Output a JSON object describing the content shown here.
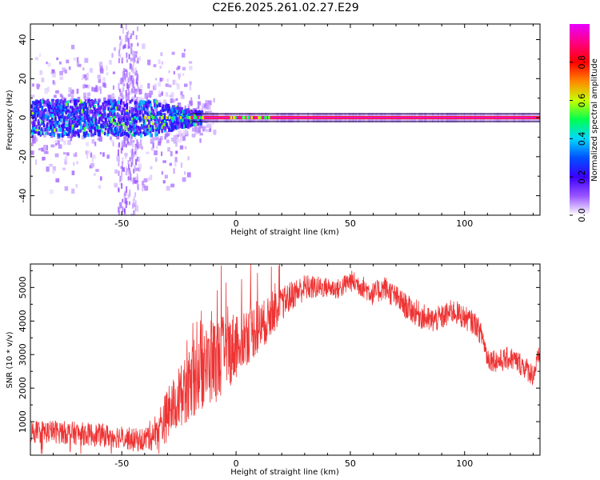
{
  "title": "C2E6.2025.261.02.27.E29",
  "chart_data": [
    {
      "type": "heatmap",
      "xlabel": "Height of straight line (km)",
      "ylabel": "Frequency (Hz)",
      "xlim": [
        -90,
        133
      ],
      "ylim": [
        -50,
        48
      ],
      "xticks": [
        -50,
        0,
        50,
        100
      ],
      "yticks": [
        -40,
        -20,
        0,
        20,
        40
      ],
      "colorbar": {
        "label": "Normalized spectral amplitude",
        "range": [
          0,
          1
        ],
        "ticks": [
          "0.0",
          "0.2",
          "0.4",
          "0.6",
          "0.8"
        ],
        "tick_values": [
          0,
          0.2,
          0.4,
          0.6,
          0.8
        ],
        "colors": [
          "#ffffff",
          "#9a55ff",
          "#3b00ff",
          "#0050ff",
          "#00d8ff",
          "#00ff50",
          "#c8ff00",
          "#ff8800",
          "#ff0000",
          "#ff0080",
          "#e800ff"
        ]
      },
      "features": {
        "carrier_line_frequency_hz": 0,
        "carrier_line_band_hz": [
          -2,
          2
        ],
        "broadband_noise_region_km": [
          -90,
          -15
        ],
        "vertical_streak_km": [
          -52,
          -43
        ]
      }
    },
    {
      "type": "line",
      "xlabel": "Height of straight line (km)",
      "ylabel": "SNR (10 * v/v)",
      "xlim": [
        -90,
        133
      ],
      "ylim": [
        0,
        5700
      ],
      "xticks": [
        -50,
        0,
        50,
        100
      ],
      "yticks": [
        1000,
        2000,
        3000,
        4000,
        5000
      ],
      "series_color": "#ee3333",
      "envelope": {
        "x": [
          -90,
          -80,
          -70,
          -60,
          -50,
          -45,
          -40,
          -35,
          -30,
          -25,
          -20,
          -15,
          -10,
          -5,
          0,
          5,
          10,
          15,
          20,
          25,
          30,
          35,
          40,
          45,
          50,
          55,
          60,
          65,
          70,
          75,
          80,
          85,
          90,
          95,
          100,
          105,
          108,
          110,
          115,
          120,
          125,
          130,
          133
        ],
        "y": [
          700,
          700,
          650,
          600,
          550,
          450,
          480,
          700,
          1200,
          1700,
          2100,
          2500,
          2800,
          3000,
          3300,
          3600,
          3800,
          4100,
          4500,
          4800,
          5000,
          5000,
          5000,
          4950,
          5200,
          5050,
          4800,
          5000,
          4700,
          4400,
          4200,
          4000,
          4100,
          4300,
          4100,
          3900,
          3500,
          2900,
          2800,
          2900,
          2700,
          2400,
          3000
        ]
      },
      "noise_amplitude": {
        "x": [
          -90,
          -40,
          -30,
          -10,
          20,
          40,
          80,
          105,
          133
        ],
        "y": [
          350,
          350,
          800,
          1300,
          500,
          300,
          400,
          350,
          350
        ]
      }
    }
  ]
}
